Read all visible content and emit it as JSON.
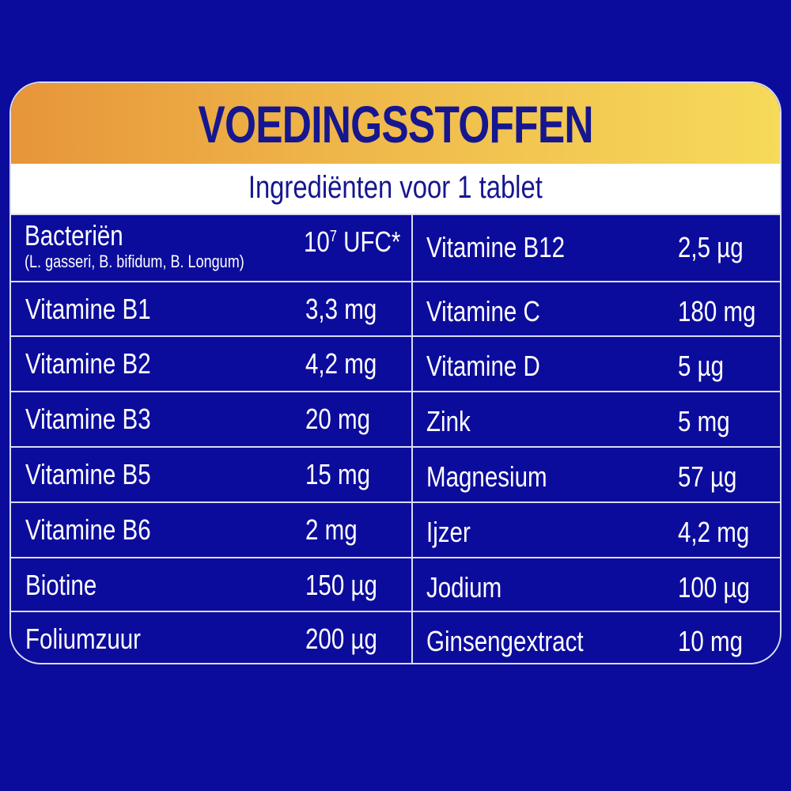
{
  "title": "VOEDINGSSTOFFEN",
  "subtitle": "Ingrediënten voor 1 tablet",
  "colors": {
    "background": "#0c0c9c",
    "title": "#16168f",
    "gradient_start": "#e7953a",
    "gradient_end": "#f6da5a"
  },
  "bacteria": {
    "name": "Bacteriën",
    "strains": "(L. gasseri, B. bifidum, B. Longum)",
    "value_base": "10",
    "value_exp": "7",
    "value_unit": " UFC*"
  },
  "left": [
    {
      "name": "Vitamine B1",
      "value": "3,3 mg"
    },
    {
      "name": "Vitamine B2",
      "value": "4,2 mg"
    },
    {
      "name": "Vitamine B3",
      "value": "20 mg"
    },
    {
      "name": "Vitamine B5",
      "value": "15 mg"
    },
    {
      "name": "Vitamine B6",
      "value": "2 mg"
    },
    {
      "name": "Biotine",
      "value": "150 µg"
    },
    {
      "name": "Foliumzuur",
      "value": "200 µg"
    }
  ],
  "right": [
    {
      "name": "Vitamine B12",
      "value": "2,5 µg"
    },
    {
      "name": "Vitamine C",
      "value": "180 mg"
    },
    {
      "name": "Vitamine D",
      "value": "5 µg"
    },
    {
      "name": "Zink",
      "value": "5 mg"
    },
    {
      "name": "Magnesium",
      "value": "57 µg"
    },
    {
      "name": "Ijzer",
      "value": "4,2 mg"
    },
    {
      "name": "Jodium",
      "value": "100 µg"
    },
    {
      "name": "Ginsengextract",
      "value": "10 mg"
    }
  ]
}
